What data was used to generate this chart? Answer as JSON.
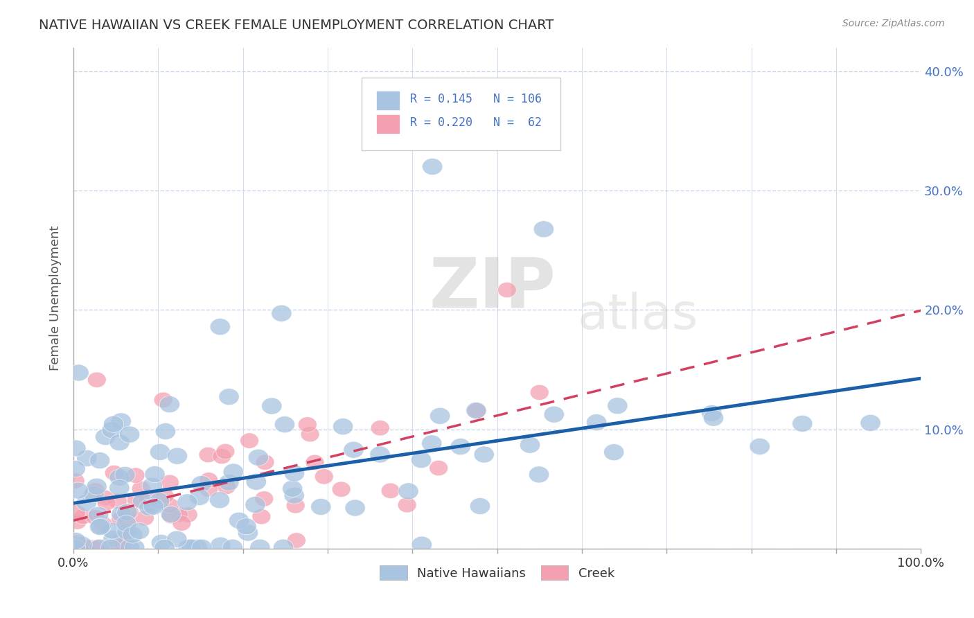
{
  "title": "NATIVE HAWAIIAN VS CREEK FEMALE UNEMPLOYMENT CORRELATION CHART",
  "source": "Source: ZipAtlas.com",
  "ylabel": "Female Unemployment",
  "xlim": [
    0,
    1
  ],
  "ylim": [
    0,
    0.42
  ],
  "xticks": [
    0.0,
    0.1,
    0.2,
    0.3,
    0.4,
    0.5,
    0.6,
    0.7,
    0.8,
    0.9,
    1.0
  ],
  "xticklabels": [
    "0.0%",
    "",
    "",
    "",
    "",
    "",
    "",
    "",
    "",
    "",
    "100.0%"
  ],
  "ytick_positions": [
    0.0,
    0.1,
    0.2,
    0.3,
    0.4
  ],
  "yticklabels_right": [
    "",
    "10.0%",
    "20.0%",
    "30.0%",
    "40.0%"
  ],
  "legend_r_nh": "0.145",
  "legend_n_nh": "106",
  "legend_r_creek": "0.220",
  "legend_n_creek": "62",
  "nh_color": "#a8c4e0",
  "creek_color": "#f4a0b0",
  "nh_line_color": "#1a5fa8",
  "creek_line_color": "#d44060",
  "watermark_zip": "ZIP",
  "watermark_atlas": "atlas",
  "background_color": "#ffffff",
  "grid_color": "#c8d4e8",
  "title_color": "#333333",
  "axis_label_color": "#555555",
  "tick_label_color": "#4472c4",
  "legend_text_color": "#4472c4",
  "seed": 7
}
